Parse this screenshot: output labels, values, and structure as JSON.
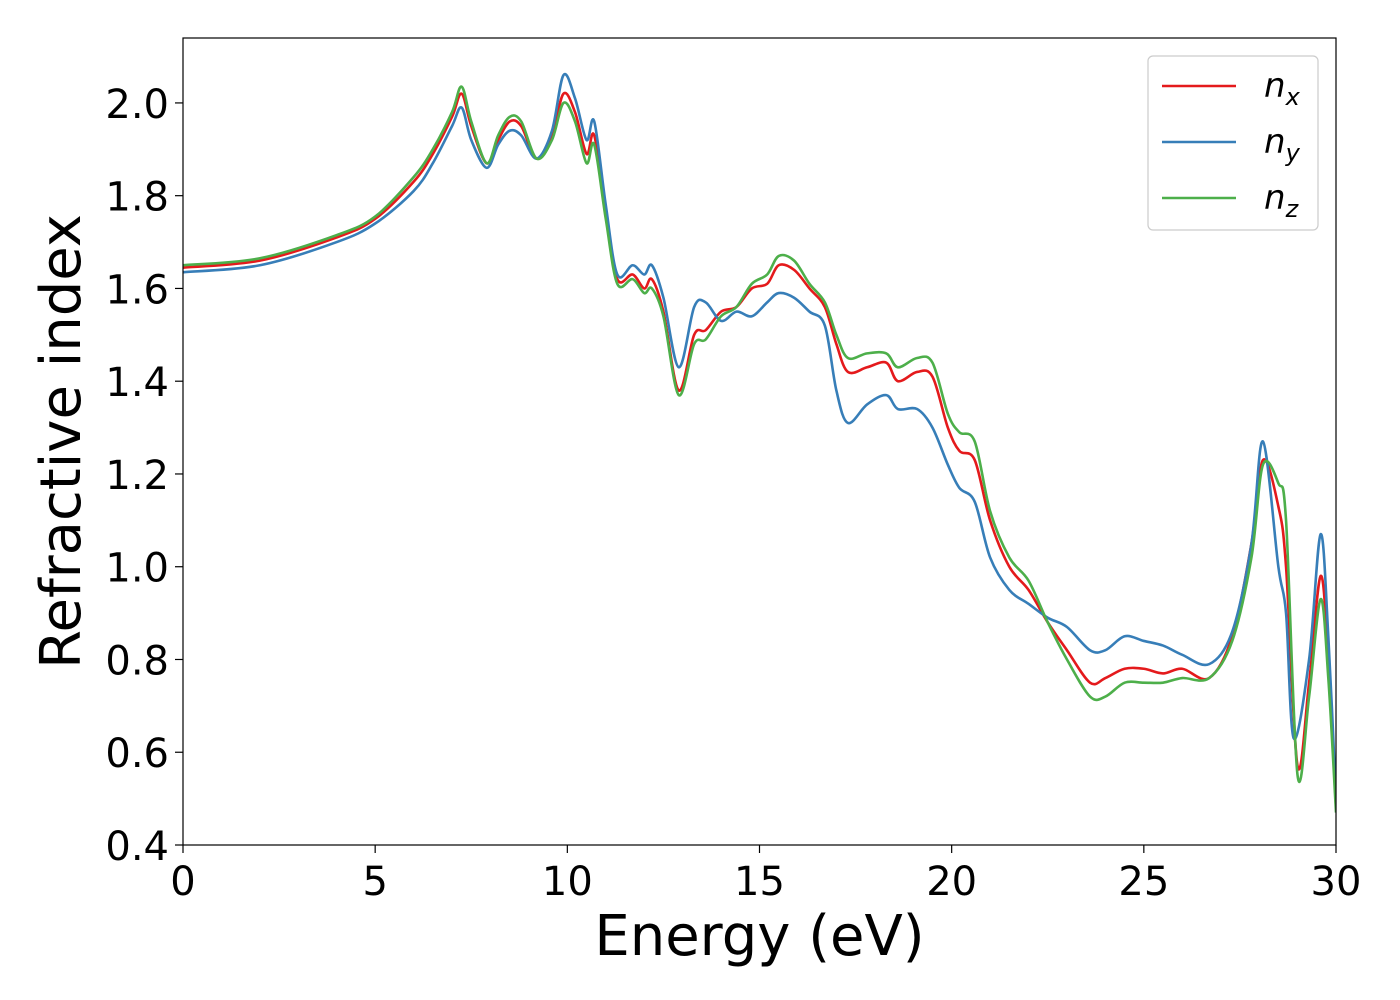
{
  "chart_data": {
    "type": "line",
    "title": "",
    "xlabel": "Energy (eV)",
    "ylabel": "Refractive index",
    "xlim": [
      0,
      30
    ],
    "ylim": [
      0.4,
      2.14
    ],
    "xticks": [
      0,
      5,
      10,
      15,
      20,
      25,
      30
    ],
    "xtick_labels": [
      "0",
      "5",
      "10",
      "15",
      "20",
      "25",
      "30"
    ],
    "yticks": [
      0.4,
      0.6,
      0.8,
      1.0,
      1.2,
      1.4,
      1.6,
      1.8,
      2.0
    ],
    "ytick_labels": [
      "0.4",
      "0.6",
      "0.8",
      "1.0",
      "1.2",
      "1.4",
      "1.6",
      "1.8",
      "2.0"
    ],
    "grid": false,
    "legend_position": "top-right",
    "series": [
      {
        "name": "n",
        "subscript": "x",
        "color": "#e41a1c",
        "points": [
          [
            0,
            1.645
          ],
          [
            2,
            1.66
          ],
          [
            4,
            1.71
          ],
          [
            5,
            1.75
          ],
          [
            6,
            1.83
          ],
          [
            6.5,
            1.89
          ],
          [
            7,
            1.97
          ],
          [
            7.25,
            2.02
          ],
          [
            7.5,
            1.95
          ],
          [
            7.9,
            1.87
          ],
          [
            8.2,
            1.92
          ],
          [
            8.5,
            1.96
          ],
          [
            8.8,
            1.95
          ],
          [
            9.2,
            1.88
          ],
          [
            9.6,
            1.93
          ],
          [
            9.9,
            2.02
          ],
          [
            10.2,
            1.98
          ],
          [
            10.5,
            1.89
          ],
          [
            10.7,
            1.93
          ],
          [
            11,
            1.76
          ],
          [
            11.3,
            1.62
          ],
          [
            11.7,
            1.63
          ],
          [
            12,
            1.6
          ],
          [
            12.2,
            1.62
          ],
          [
            12.5,
            1.55
          ],
          [
            12.9,
            1.38
          ],
          [
            13.3,
            1.5
          ],
          [
            13.6,
            1.51
          ],
          [
            14,
            1.55
          ],
          [
            14.4,
            1.56
          ],
          [
            14.8,
            1.6
          ],
          [
            15.2,
            1.61
          ],
          [
            15.5,
            1.65
          ],
          [
            15.9,
            1.64
          ],
          [
            16.3,
            1.6
          ],
          [
            16.7,
            1.56
          ],
          [
            17,
            1.48
          ],
          [
            17.3,
            1.42
          ],
          [
            17.8,
            1.43
          ],
          [
            18.3,
            1.44
          ],
          [
            18.6,
            1.4
          ],
          [
            19.1,
            1.42
          ],
          [
            19.5,
            1.41
          ],
          [
            19.9,
            1.3
          ],
          [
            20.2,
            1.25
          ],
          [
            20.6,
            1.23
          ],
          [
            21.0,
            1.1
          ],
          [
            21.5,
            1.0
          ],
          [
            22,
            0.95
          ],
          [
            22.5,
            0.88
          ],
          [
            23,
            0.82
          ],
          [
            23.6,
            0.75
          ],
          [
            24,
            0.76
          ],
          [
            24.5,
            0.78
          ],
          [
            25,
            0.78
          ],
          [
            25.5,
            0.77
          ],
          [
            26,
            0.78
          ],
          [
            26.7,
            0.76
          ],
          [
            27.3,
            0.85
          ],
          [
            27.8,
            1.05
          ],
          [
            28.1,
            1.23
          ],
          [
            28.5,
            1.13
          ],
          [
            28.7,
            1.0
          ],
          [
            29.0,
            0.57
          ],
          [
            29.3,
            0.75
          ],
          [
            29.6,
            0.98
          ],
          [
            29.8,
            0.8
          ],
          [
            30,
            0.48
          ]
        ]
      },
      {
        "name": "n",
        "subscript": "y",
        "color": "#377eb8",
        "points": [
          [
            0,
            1.635
          ],
          [
            2,
            1.65
          ],
          [
            4,
            1.7
          ],
          [
            5,
            1.74
          ],
          [
            6,
            1.81
          ],
          [
            6.5,
            1.87
          ],
          [
            7,
            1.95
          ],
          [
            7.25,
            1.99
          ],
          [
            7.5,
            1.92
          ],
          [
            7.9,
            1.86
          ],
          [
            8.2,
            1.91
          ],
          [
            8.5,
            1.94
          ],
          [
            8.8,
            1.93
          ],
          [
            9.2,
            1.88
          ],
          [
            9.6,
            1.94
          ],
          [
            9.9,
            2.06
          ],
          [
            10.2,
            2.01
          ],
          [
            10.5,
            1.92
          ],
          [
            10.7,
            1.96
          ],
          [
            11,
            1.78
          ],
          [
            11.3,
            1.63
          ],
          [
            11.7,
            1.65
          ],
          [
            12,
            1.63
          ],
          [
            12.2,
            1.65
          ],
          [
            12.5,
            1.58
          ],
          [
            12.9,
            1.43
          ],
          [
            13.3,
            1.56
          ],
          [
            13.6,
            1.57
          ],
          [
            14,
            1.53
          ],
          [
            14.4,
            1.55
          ],
          [
            14.8,
            1.54
          ],
          [
            15.2,
            1.57
          ],
          [
            15.5,
            1.59
          ],
          [
            15.9,
            1.58
          ],
          [
            16.3,
            1.55
          ],
          [
            16.7,
            1.52
          ],
          [
            17,
            1.38
          ],
          [
            17.3,
            1.31
          ],
          [
            17.8,
            1.35
          ],
          [
            18.3,
            1.37
          ],
          [
            18.6,
            1.34
          ],
          [
            19.1,
            1.34
          ],
          [
            19.5,
            1.3
          ],
          [
            19.9,
            1.22
          ],
          [
            20.2,
            1.17
          ],
          [
            20.6,
            1.14
          ],
          [
            21.0,
            1.02
          ],
          [
            21.5,
            0.95
          ],
          [
            22,
            0.92
          ],
          [
            22.5,
            0.89
          ],
          [
            23,
            0.87
          ],
          [
            23.6,
            0.82
          ],
          [
            24,
            0.82
          ],
          [
            24.5,
            0.85
          ],
          [
            25,
            0.84
          ],
          [
            25.5,
            0.83
          ],
          [
            26,
            0.81
          ],
          [
            26.7,
            0.79
          ],
          [
            27.3,
            0.86
          ],
          [
            27.8,
            1.05
          ],
          [
            28.1,
            1.27
          ],
          [
            28.5,
            1.0
          ],
          [
            28.7,
            0.9
          ],
          [
            28.9,
            0.63
          ],
          [
            29.3,
            0.8
          ],
          [
            29.6,
            1.07
          ],
          [
            29.8,
            0.85
          ],
          [
            30,
            0.5
          ]
        ]
      },
      {
        "name": "n",
        "subscript": "z",
        "color": "#4daf4a",
        "points": [
          [
            0,
            1.65
          ],
          [
            2,
            1.665
          ],
          [
            4,
            1.715
          ],
          [
            5,
            1.755
          ],
          [
            6,
            1.84
          ],
          [
            6.5,
            1.9
          ],
          [
            7,
            1.98
          ],
          [
            7.25,
            2.035
          ],
          [
            7.5,
            1.96
          ],
          [
            7.9,
            1.87
          ],
          [
            8.2,
            1.93
          ],
          [
            8.5,
            1.97
          ],
          [
            8.8,
            1.96
          ],
          [
            9.2,
            1.88
          ],
          [
            9.6,
            1.92
          ],
          [
            9.9,
            2.0
          ],
          [
            10.2,
            1.96
          ],
          [
            10.5,
            1.87
          ],
          [
            10.7,
            1.91
          ],
          [
            11,
            1.75
          ],
          [
            11.3,
            1.61
          ],
          [
            11.7,
            1.62
          ],
          [
            12,
            1.59
          ],
          [
            12.2,
            1.6
          ],
          [
            12.5,
            1.54
          ],
          [
            12.9,
            1.37
          ],
          [
            13.3,
            1.48
          ],
          [
            13.6,
            1.49
          ],
          [
            14,
            1.54
          ],
          [
            14.4,
            1.56
          ],
          [
            14.8,
            1.61
          ],
          [
            15.2,
            1.63
          ],
          [
            15.5,
            1.67
          ],
          [
            15.9,
            1.66
          ],
          [
            16.3,
            1.61
          ],
          [
            16.7,
            1.57
          ],
          [
            17,
            1.5
          ],
          [
            17.3,
            1.45
          ],
          [
            17.8,
            1.46
          ],
          [
            18.3,
            1.46
          ],
          [
            18.6,
            1.43
          ],
          [
            19.1,
            1.45
          ],
          [
            19.5,
            1.44
          ],
          [
            19.9,
            1.33
          ],
          [
            20.2,
            1.29
          ],
          [
            20.6,
            1.27
          ],
          [
            21.0,
            1.12
          ],
          [
            21.5,
            1.02
          ],
          [
            22,
            0.97
          ],
          [
            22.5,
            0.88
          ],
          [
            23,
            0.8
          ],
          [
            23.6,
            0.72
          ],
          [
            24,
            0.72
          ],
          [
            24.5,
            0.75
          ],
          [
            25,
            0.75
          ],
          [
            25.5,
            0.75
          ],
          [
            26,
            0.76
          ],
          [
            26.7,
            0.76
          ],
          [
            27.3,
            0.84
          ],
          [
            27.8,
            1.02
          ],
          [
            28.1,
            1.22
          ],
          [
            28.5,
            1.18
          ],
          [
            28.7,
            1.1
          ],
          [
            29.0,
            0.55
          ],
          [
            29.3,
            0.72
          ],
          [
            29.6,
            0.93
          ],
          [
            29.8,
            0.76
          ],
          [
            30,
            0.47
          ]
        ]
      }
    ]
  }
}
